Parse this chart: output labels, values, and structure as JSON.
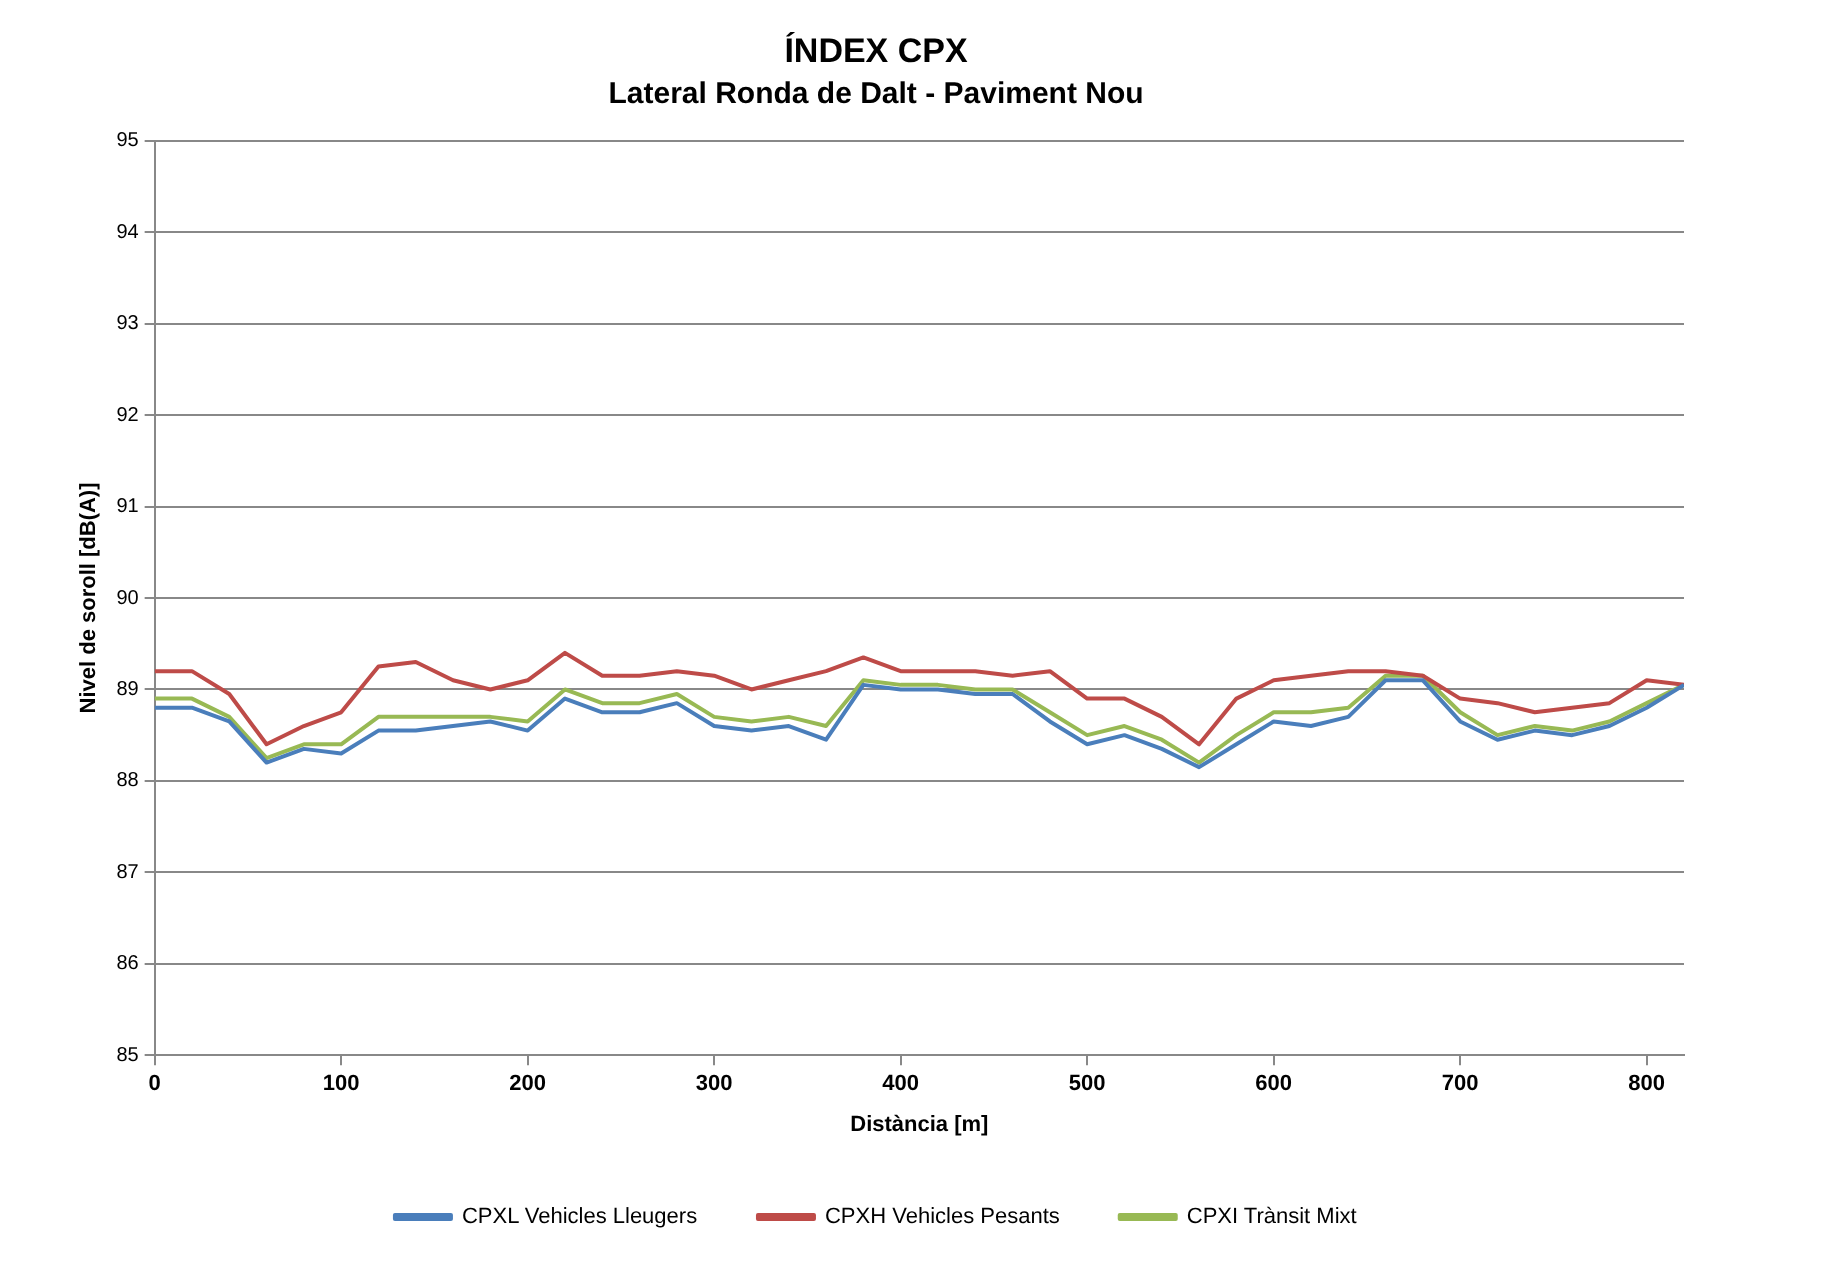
{
  "chart_data": {
    "type": "line",
    "title": "ÍNDEX CPX",
    "subtitle": "Lateral Ronda de Dalt - Paviment Nou",
    "xlabel": "Distància [m]",
    "ylabel": "Nivel de soroll [dB(A)]",
    "x": [
      0,
      20,
      40,
      60,
      80,
      100,
      120,
      140,
      160,
      180,
      200,
      220,
      240,
      260,
      280,
      300,
      320,
      340,
      360,
      380,
      400,
      420,
      440,
      460,
      480,
      500,
      520,
      540,
      560,
      580,
      600,
      620,
      640,
      660,
      680,
      700,
      720,
      740,
      760,
      780,
      800,
      820
    ],
    "series": [
      {
        "name": "CPXL Vehicles Lleugers",
        "color": "#4a7ebb",
        "values": [
          88.8,
          88.8,
          88.65,
          88.2,
          88.35,
          88.3,
          88.55,
          88.55,
          88.6,
          88.65,
          88.55,
          88.9,
          88.75,
          88.75,
          88.85,
          88.6,
          88.55,
          88.6,
          88.45,
          89.05,
          89.0,
          89.0,
          88.95,
          88.95,
          88.65,
          88.4,
          88.5,
          88.35,
          88.15,
          88.4,
          88.65,
          88.6,
          88.7,
          89.1,
          89.1,
          88.65,
          88.45,
          88.55,
          88.5,
          88.6,
          88.8,
          89.05
        ]
      },
      {
        "name": "CPXH Vehicles Pesants",
        "color": "#be4b48",
        "values": [
          89.2,
          89.2,
          88.95,
          88.4,
          88.6,
          88.75,
          89.25,
          89.3,
          89.1,
          89.0,
          89.1,
          89.4,
          89.15,
          89.15,
          89.2,
          89.15,
          89.0,
          89.1,
          89.2,
          89.35,
          89.2,
          89.2,
          89.2,
          89.15,
          89.2,
          88.9,
          88.9,
          88.7,
          88.4,
          88.9,
          89.1,
          89.15,
          89.2,
          89.2,
          89.15,
          88.9,
          88.85,
          88.75,
          88.8,
          88.85,
          89.1,
          89.05
        ]
      },
      {
        "name": "CPXI Trànsit Mixt",
        "color": "#98b954",
        "values": [
          88.9,
          88.9,
          88.7,
          88.25,
          88.4,
          88.4,
          88.7,
          88.7,
          88.7,
          88.7,
          88.65,
          89.0,
          88.85,
          88.85,
          88.95,
          88.7,
          88.65,
          88.7,
          88.6,
          89.1,
          89.05,
          89.05,
          89.0,
          89.0,
          88.75,
          88.5,
          88.6,
          88.45,
          88.2,
          88.5,
          88.75,
          88.75,
          88.8,
          89.15,
          89.15,
          88.75,
          88.5,
          88.6,
          88.55,
          88.65,
          88.85,
          89.05
        ]
      }
    ],
    "xlim": [
      0,
      820
    ],
    "xticks": [
      0,
      100,
      200,
      300,
      400,
      500,
      600,
      700,
      800
    ],
    "ylim": [
      85,
      95
    ],
    "yticks": [
      85,
      86,
      87,
      88,
      89,
      90,
      91,
      92,
      93,
      94,
      95
    ],
    "grid": "y",
    "legend": "bottom",
    "marker": "none",
    "line_style": "solid"
  }
}
